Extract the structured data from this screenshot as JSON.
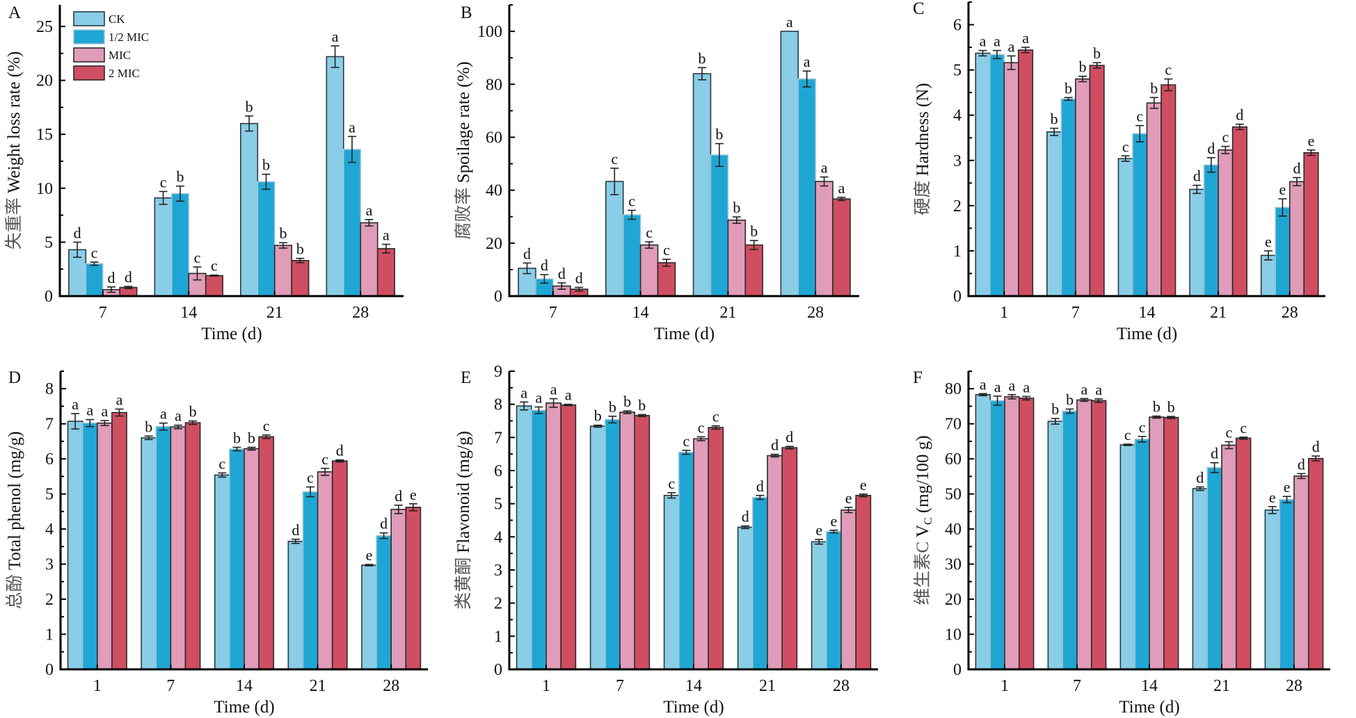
{
  "figure": {
    "legend": [
      {
        "name": "CK",
        "color": "#8ACDE6",
        "stroke": "#2a3a44"
      },
      {
        "name": "1/2 MIC",
        "color": "#1FA6D4",
        "stroke": "#9cc8d8"
      },
      {
        "name": "MIC",
        "color": "#E09CB8",
        "stroke": "#2a2a2a"
      },
      {
        "name": "2 MIC",
        "color": "#D04E62",
        "stroke": "#2a2a2a"
      }
    ]
  },
  "chart_data": [
    {
      "id": "A",
      "type": "bar",
      "panel_label": "A",
      "title": "",
      "xlabel": "Time (d)",
      "ylabel_cn": "失重率",
      "ylabel": "Weight loss rate (%)",
      "ylim": [
        0,
        27
      ],
      "yticks": [
        0,
        5,
        10,
        15,
        20,
        25
      ],
      "yminor": 2.5,
      "categories": [
        "7",
        "14",
        "21",
        "28"
      ],
      "legend_position": "top-left",
      "series": [
        {
          "name": "CK",
          "values": [
            4.3,
            9.1,
            16.0,
            22.2
          ],
          "errors": [
            0.7,
            0.6,
            0.7,
            1.0
          ],
          "letters": [
            "d",
            "c",
            "b",
            "a"
          ]
        },
        {
          "name": "1/2 MIC",
          "values": [
            3.0,
            9.5,
            10.6,
            13.6
          ],
          "errors": [
            0.15,
            0.7,
            0.7,
            1.2
          ],
          "letters": [
            "c",
            "b",
            "b",
            "a"
          ]
        },
        {
          "name": "MIC",
          "values": [
            0.6,
            2.1,
            4.7,
            6.8
          ],
          "errors": [
            0.25,
            0.6,
            0.25,
            0.3
          ],
          "letters": [
            "d",
            "c",
            "b",
            "a"
          ]
        },
        {
          "name": "2 MIC",
          "values": [
            0.8,
            1.9,
            3.3,
            4.4
          ],
          "errors": [
            0.1,
            0.05,
            0.2,
            0.4
          ],
          "letters": [
            "d",
            "c",
            "b",
            "a"
          ]
        }
      ]
    },
    {
      "id": "B",
      "type": "bar",
      "panel_label": "B",
      "title": "",
      "xlabel": "Time (d)",
      "ylabel_cn": "腐败率",
      "ylabel": "Spoilage rate (%)",
      "ylim": [
        0,
        110
      ],
      "yticks": [
        0,
        20,
        40,
        60,
        80,
        100
      ],
      "yminor": 10,
      "categories": [
        "7",
        "14",
        "21",
        "28"
      ],
      "legend_position": "none",
      "series": [
        {
          "name": "CK",
          "values": [
            10.5,
            43.3,
            84.0,
            100.0
          ],
          "errors": [
            2.0,
            5.0,
            2.3,
            0
          ],
          "letters": [
            "d",
            "c",
            "b",
            "a"
          ]
        },
        {
          "name": "1/2 MIC",
          "values": [
            6.5,
            30.7,
            53.3,
            82.0
          ],
          "errors": [
            1.6,
            1.7,
            4.3,
            3.0
          ],
          "letters": [
            "d",
            "c",
            "b",
            "a"
          ]
        },
        {
          "name": "MIC",
          "values": [
            3.8,
            19.3,
            28.7,
            43.3
          ],
          "errors": [
            1.2,
            1.2,
            1.2,
            1.7
          ],
          "letters": [
            "d",
            "c",
            "b",
            "a"
          ]
        },
        {
          "name": "2 MIC",
          "values": [
            2.6,
            12.6,
            19.3,
            36.7
          ],
          "errors": [
            0.7,
            1.3,
            1.7,
            0.6
          ],
          "letters": [
            "d",
            "c",
            "b",
            "a"
          ]
        }
      ]
    },
    {
      "id": "C",
      "type": "bar",
      "panel_label": "C",
      "title": "",
      "xlabel": "Time (d)",
      "ylabel_cn": "硬度",
      "ylabel": "Hardness (N)",
      "ylim": [
        0,
        6.5
      ],
      "yticks": [
        0,
        1,
        2,
        3,
        4,
        5,
        6
      ],
      "yminor": 0.5,
      "categories": [
        "1",
        "7",
        "14",
        "21",
        "28"
      ],
      "legend_position": "none",
      "series": [
        {
          "name": "CK",
          "values": [
            5.37,
            3.63,
            3.04,
            2.36,
            0.9
          ],
          "errors": [
            0.06,
            0.08,
            0.06,
            0.09,
            0.1
          ],
          "letters": [
            "a",
            "b",
            "c",
            "d",
            "e"
          ]
        },
        {
          "name": "1/2 MIC",
          "values": [
            5.34,
            4.36,
            3.59,
            2.9,
            1.96
          ],
          "errors": [
            0.09,
            0.03,
            0.18,
            0.16,
            0.19
          ],
          "letters": [
            "a",
            "b",
            "c",
            "d",
            "e"
          ]
        },
        {
          "name": "MIC",
          "values": [
            5.16,
            4.8,
            4.27,
            3.23,
            2.53
          ],
          "errors": [
            0.15,
            0.06,
            0.12,
            0.08,
            0.09
          ],
          "letters": [
            "a",
            "b",
            "b",
            "c",
            "d"
          ]
        },
        {
          "name": "2 MIC",
          "values": [
            5.44,
            5.1,
            4.67,
            3.74,
            3.17
          ],
          "errors": [
            0.06,
            0.06,
            0.13,
            0.06,
            0.06
          ],
          "letters": [
            "a",
            "b",
            "c",
            "d",
            "e"
          ]
        }
      ]
    },
    {
      "id": "D",
      "type": "bar",
      "panel_label": "D",
      "title": "",
      "xlabel": "Time (d)",
      "ylabel_cn": "总酚",
      "ylabel": "Total phenol (mg/g)",
      "ylim": [
        0,
        8.5
      ],
      "yticks": [
        0,
        1,
        2,
        3,
        4,
        5,
        6,
        7,
        8
      ],
      "yminor": 0.5,
      "categories": [
        "1",
        "7",
        "14",
        "21",
        "28"
      ],
      "legend_position": "none",
      "series": [
        {
          "name": "CK",
          "values": [
            7.07,
            6.6,
            5.54,
            3.65,
            2.97
          ],
          "errors": [
            0.22,
            0.05,
            0.06,
            0.06,
            0.02
          ],
          "letters": [
            "a",
            "b",
            "c",
            "d",
            "e"
          ]
        },
        {
          "name": "1/2 MIC",
          "values": [
            7.02,
            6.92,
            6.28,
            5.06,
            3.81
          ],
          "errors": [
            0.1,
            0.1,
            0.05,
            0.14,
            0.08
          ],
          "letters": [
            "a",
            "a",
            "b",
            "c",
            "d"
          ]
        },
        {
          "name": "MIC",
          "values": [
            7.02,
            6.91,
            6.29,
            5.63,
            4.56
          ],
          "errors": [
            0.07,
            0.05,
            0.04,
            0.1,
            0.12
          ],
          "letters": [
            "a",
            "a",
            "b",
            "c",
            "d"
          ]
        },
        {
          "name": "2 MIC",
          "values": [
            7.32,
            7.03,
            6.63,
            5.94,
            4.62
          ],
          "errors": [
            0.1,
            0.05,
            0.05,
            0.03,
            0.1
          ],
          "letters": [
            "a",
            "b",
            "c",
            "d",
            "e"
          ]
        }
      ]
    },
    {
      "id": "E",
      "type": "bar",
      "panel_label": "E",
      "title": "",
      "xlabel": "Time (d)",
      "ylabel_cn": "类黄酮",
      "ylabel": "Flavonoid (mg/g)",
      "ylim": [
        0,
        9
      ],
      "yticks": [
        0,
        1,
        2,
        3,
        4,
        5,
        6,
        7,
        8,
        9
      ],
      "yminor": 0.5,
      "categories": [
        "1",
        "7",
        "14",
        "21",
        "28"
      ],
      "legend_position": "none",
      "series": [
        {
          "name": "CK",
          "values": [
            7.95,
            7.34,
            5.25,
            4.29,
            3.85
          ],
          "errors": [
            0.12,
            0.03,
            0.08,
            0.04,
            0.07
          ],
          "letters": [
            "a",
            "b",
            "c",
            "d",
            "e"
          ]
        },
        {
          "name": "1/2 MIC",
          "values": [
            7.82,
            7.54,
            6.55,
            5.19,
            4.16
          ],
          "errors": [
            0.1,
            0.1,
            0.06,
            0.06,
            0.04
          ],
          "letters": [
            "a",
            "b",
            "c",
            "d",
            "e"
          ]
        },
        {
          "name": "MIC",
          "values": [
            8.04,
            7.76,
            6.96,
            6.45,
            4.81
          ],
          "errors": [
            0.13,
            0.04,
            0.06,
            0.04,
            0.08
          ],
          "letters": [
            "a",
            "b",
            "c",
            "d",
            "e"
          ]
        },
        {
          "name": "2 MIC",
          "values": [
            7.98,
            7.66,
            7.3,
            6.69,
            5.25
          ],
          "errors": [
            0.02,
            0.03,
            0.05,
            0.04,
            0.04
          ],
          "letters": [
            "a",
            "b",
            "c",
            "d",
            "e"
          ]
        }
      ]
    },
    {
      "id": "F",
      "type": "bar",
      "panel_label": "F",
      "title": "",
      "xlabel": "Time (d)",
      "ylabel_cn": "维生素C",
      "ylabel": "V",
      "ylabel_sub": "C",
      "ylabel_unit": "(mg/100 g)",
      "ylim": [
        0,
        85
      ],
      "yticks": [
        0,
        10,
        20,
        30,
        40,
        50,
        60,
        70,
        80
      ],
      "yminor": 5,
      "categories": [
        "1",
        "7",
        "14",
        "21",
        "28"
      ],
      "legend_position": "none",
      "series": [
        {
          "name": "CK",
          "values": [
            78.3,
            70.7,
            64.0,
            51.5,
            45.4
          ],
          "errors": [
            0.3,
            0.8,
            0.2,
            0.5,
            1.0
          ],
          "letters": [
            "a",
            "b",
            "c",
            "d",
            "e"
          ]
        },
        {
          "name": "1/2 MIC",
          "values": [
            76.6,
            73.6,
            65.6,
            57.5,
            48.4
          ],
          "errors": [
            1.3,
            0.6,
            0.8,
            1.4,
            0.9
          ],
          "letters": [
            "a",
            "b",
            "c",
            "d",
            "e"
          ]
        },
        {
          "name": "MIC",
          "values": [
            77.7,
            76.8,
            71.9,
            63.9,
            55.1
          ],
          "errors": [
            0.6,
            0.4,
            0.3,
            1.0,
            0.7
          ],
          "letters": [
            "a",
            "a",
            "b",
            "c",
            "d"
          ]
        },
        {
          "name": "2 MIC",
          "values": [
            77.3,
            76.6,
            71.8,
            65.9,
            60.1
          ],
          "errors": [
            0.5,
            0.5,
            0.3,
            0.3,
            0.7
          ],
          "letters": [
            "a",
            "a",
            "b",
            "c",
            "d"
          ]
        }
      ]
    }
  ]
}
